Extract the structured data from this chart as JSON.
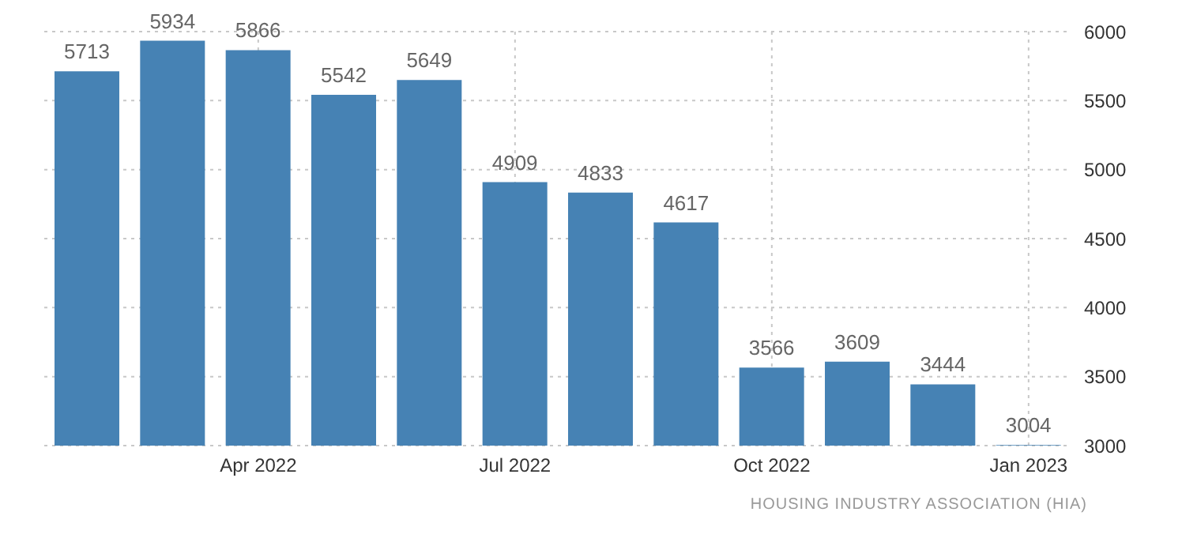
{
  "chart_data": {
    "type": "bar",
    "categories": [
      null,
      null,
      "Apr 2022",
      null,
      null,
      "Jul 2022",
      null,
      null,
      "Oct 2022",
      null,
      null,
      "Jan 2023"
    ],
    "values": [
      5713,
      5934,
      5866,
      5542,
      5649,
      4909,
      4833,
      4617,
      3566,
      3609,
      3444,
      3004
    ],
    "color": "#4682b4",
    "ylim": [
      3000,
      6000
    ],
    "yticks": [
      3000,
      3500,
      4000,
      4500,
      5000,
      5500,
      6000
    ],
    "grid": true,
    "data_labels": true,
    "legend": false,
    "annotations": [
      "HOUSING INDUSTRY ASSOCIATION (HIA)"
    ]
  }
}
